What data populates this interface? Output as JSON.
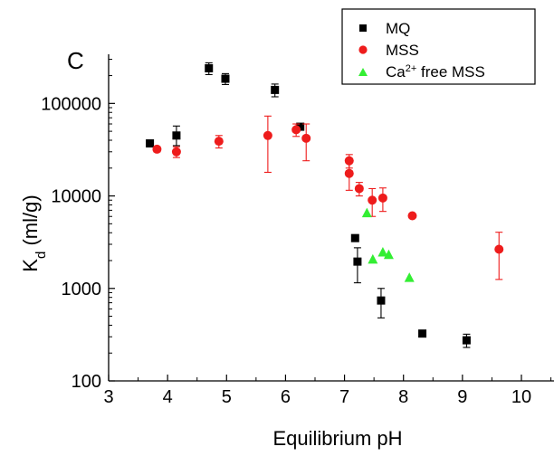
{
  "chart_data": {
    "type": "scatter",
    "panel_label": "C",
    "xlabel": "Equilibrium pH",
    "ylabel_main": "K",
    "ylabel_sub": "d",
    "ylabel_unit": " (ml/g)",
    "xlim": [
      3,
      10.5
    ],
    "ylim": [
      100,
      340000
    ],
    "yscale": "log",
    "x_ticks": [
      3,
      4,
      5,
      6,
      7,
      8,
      9,
      10
    ],
    "y_ticks": [
      100,
      1000,
      10000,
      100000
    ],
    "y_tick_labels": [
      "100",
      "1000",
      "10000",
      "100000"
    ],
    "legend_position": "top-right",
    "legend": [
      {
        "series": "MQ",
        "label": "MQ"
      },
      {
        "series": "MSS",
        "label": "MSS"
      },
      {
        "series": "Ca free MSS",
        "label_prefix": "Ca",
        "label_sup": "2+",
        "label_suffix": " free MSS"
      }
    ],
    "series": [
      {
        "name": "MQ",
        "marker": "square",
        "color": "#000000",
        "points": [
          {
            "x": 3.7,
            "y": 37000,
            "lo": 34000,
            "hi": 40000
          },
          {
            "x": 4.15,
            "y": 45000,
            "lo": 35000,
            "hi": 57000
          },
          {
            "x": 4.7,
            "y": 240000,
            "lo": 205000,
            "hi": 275000
          },
          {
            "x": 4.98,
            "y": 185000,
            "lo": 160000,
            "hi": 210000
          },
          {
            "x": 5.82,
            "y": 140000,
            "lo": 118000,
            "hi": 162000
          },
          {
            "x": 6.25,
            "y": 56000,
            "lo": 54000,
            "hi": 58000
          },
          {
            "x": 7.18,
            "y": 3500,
            "lo": 3400,
            "hi": 3600
          },
          {
            "x": 7.22,
            "y": 1950,
            "lo": 1150,
            "hi": 2750
          },
          {
            "x": 7.62,
            "y": 740,
            "lo": 480,
            "hi": 1000
          },
          {
            "x": 8.32,
            "y": 325,
            "lo": 315,
            "hi": 335
          },
          {
            "x": 9.07,
            "y": 275,
            "lo": 230,
            "hi": 320
          }
        ]
      },
      {
        "name": "MSS",
        "marker": "circle",
        "color": "#ee1c1c",
        "points": [
          {
            "x": 3.82,
            "y": 32000,
            "lo": 30000,
            "hi": 34000
          },
          {
            "x": 4.15,
            "y": 30000,
            "lo": 26000,
            "hi": 34000
          },
          {
            "x": 4.87,
            "y": 39000,
            "lo": 33000,
            "hi": 45000
          },
          {
            "x": 5.7,
            "y": 45000,
            "lo": 18000,
            "hi": 73000
          },
          {
            "x": 6.18,
            "y": 52000,
            "lo": 44000,
            "hi": 60000
          },
          {
            "x": 6.35,
            "y": 42000,
            "lo": 24000,
            "hi": 60000
          },
          {
            "x": 7.08,
            "y": 24000,
            "lo": 20000,
            "hi": 28000
          },
          {
            "x": 7.08,
            "y": 17500,
            "lo": 11500,
            "hi": 23500
          },
          {
            "x": 7.25,
            "y": 12000,
            "lo": 10000,
            "hi": 14000
          },
          {
            "x": 7.47,
            "y": 9000,
            "lo": 6000,
            "hi": 12000
          },
          {
            "x": 7.65,
            "y": 9500,
            "lo": 6800,
            "hi": 12200
          },
          {
            "x": 8.15,
            "y": 6100,
            "lo": 5900,
            "hi": 6300
          },
          {
            "x": 9.62,
            "y": 2650,
            "lo": 1250,
            "hi": 4050
          }
        ]
      },
      {
        "name": "Ca free MSS",
        "marker": "triangle",
        "color": "#33ee33",
        "points": [
          {
            "x": 7.38,
            "y": 6500
          },
          {
            "x": 7.48,
            "y": 2050
          },
          {
            "x": 7.65,
            "y": 2450
          },
          {
            "x": 7.75,
            "y": 2300
          },
          {
            "x": 8.1,
            "y": 1300
          }
        ]
      }
    ]
  }
}
